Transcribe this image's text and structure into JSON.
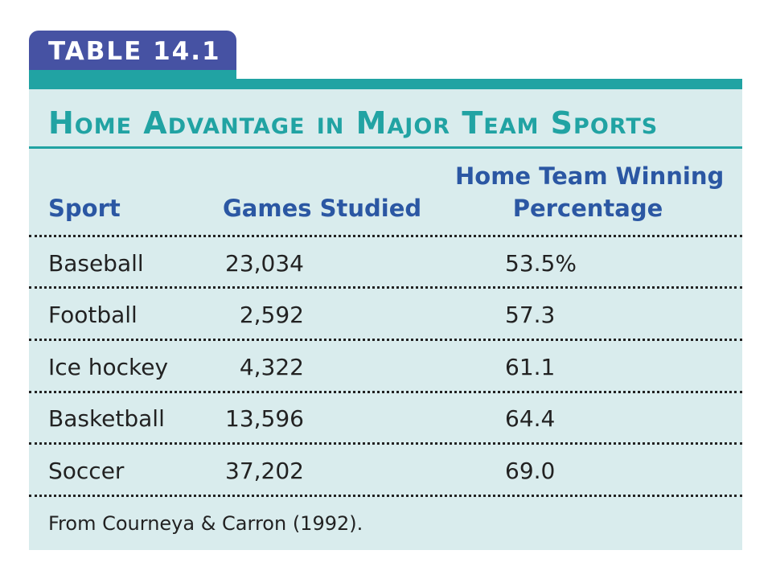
{
  "table_label": "TABLE 14.1",
  "title": "Home Advantage in Major Team Sports",
  "columns": {
    "sport": "Sport",
    "games": "Games Studied",
    "pct_line1": "Home Team Winning",
    "pct_line2": "Percentage"
  },
  "rows": [
    {
      "sport": "Baseball",
      "games": "23,034",
      "pct": "53.5%"
    },
    {
      "sport": "Football",
      "games": "2,592",
      "pct": "57.3"
    },
    {
      "sport": "Ice hockey",
      "games": "4,322",
      "pct": "61.1"
    },
    {
      "sport": "Basketball",
      "games": "13,596",
      "pct": "64.4"
    },
    {
      "sport": "Soccer",
      "games": "37,202",
      "pct": "69.0"
    }
  ],
  "source": "From Courneya & Carron (1992).",
  "colors": {
    "tab": "#4652a3",
    "accent_teal": "#21a3a3",
    "header_blue": "#2b57a3",
    "panel": "#d9eced"
  }
}
